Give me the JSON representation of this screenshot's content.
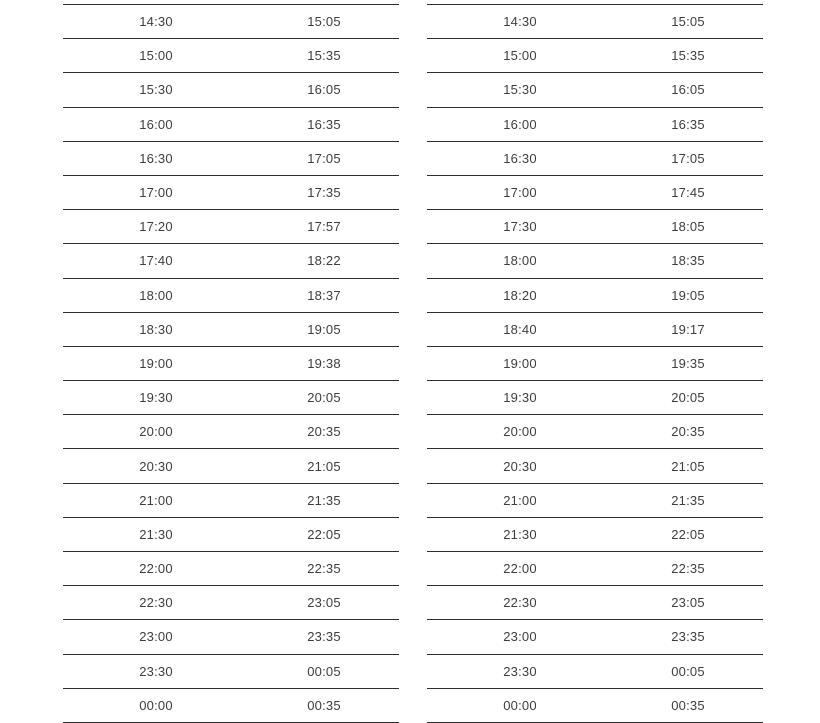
{
  "page": {
    "background_color": "#ffffff",
    "separator_line_color": "#2e2e2e",
    "time_text_color": "#3d3d3d"
  },
  "tables": [
    {
      "name": "left-timetable",
      "columns": [
        "departure-time",
        "arrival-time"
      ],
      "rows": [
        [
          "14:30",
          "15:05"
        ],
        [
          "15:00",
          "15:35"
        ],
        [
          "15:30",
          "16:05"
        ],
        [
          "16:00",
          "16:35"
        ],
        [
          "16:30",
          "17:05"
        ],
        [
          "17:00",
          "17:35"
        ],
        [
          "17:20",
          "17:57"
        ],
        [
          "17:40",
          "18:22"
        ],
        [
          "18:00",
          "18:37"
        ],
        [
          "18:30",
          "19:05"
        ],
        [
          "19:00",
          "19:38"
        ],
        [
          "19:30",
          "20:05"
        ],
        [
          "20:00",
          "20:35"
        ],
        [
          "20:30",
          "21:05"
        ],
        [
          "21:00",
          "21:35"
        ],
        [
          "21:30",
          "22:05"
        ],
        [
          "22:00",
          "22:35"
        ],
        [
          "22:30",
          "23:05"
        ],
        [
          "23:00",
          "23:35"
        ],
        [
          "23:30",
          "00:05"
        ],
        [
          "00:00",
          "00:35"
        ]
      ]
    },
    {
      "name": "right-timetable",
      "columns": [
        "departure-time",
        "arrival-time"
      ],
      "rows": [
        [
          "14:30",
          "15:05"
        ],
        [
          "15:00",
          "15:35"
        ],
        [
          "15:30",
          "16:05"
        ],
        [
          "16:00",
          "16:35"
        ],
        [
          "16:30",
          "17:05"
        ],
        [
          "17:00",
          "17:45"
        ],
        [
          "17:30",
          "18:05"
        ],
        [
          "18:00",
          "18:35"
        ],
        [
          "18:20",
          "19:05"
        ],
        [
          "18:40",
          "19:17"
        ],
        [
          "19:00",
          "19:35"
        ],
        [
          "19:30",
          "20:05"
        ],
        [
          "20:00",
          "20:35"
        ],
        [
          "20:30",
          "21:05"
        ],
        [
          "21:00",
          "21:35"
        ],
        [
          "21:30",
          "22:05"
        ],
        [
          "22:00",
          "22:35"
        ],
        [
          "22:30",
          "23:05"
        ],
        [
          "23:00",
          "23:35"
        ],
        [
          "23:30",
          "00:05"
        ],
        [
          "00:00",
          "00:35"
        ]
      ]
    }
  ]
}
